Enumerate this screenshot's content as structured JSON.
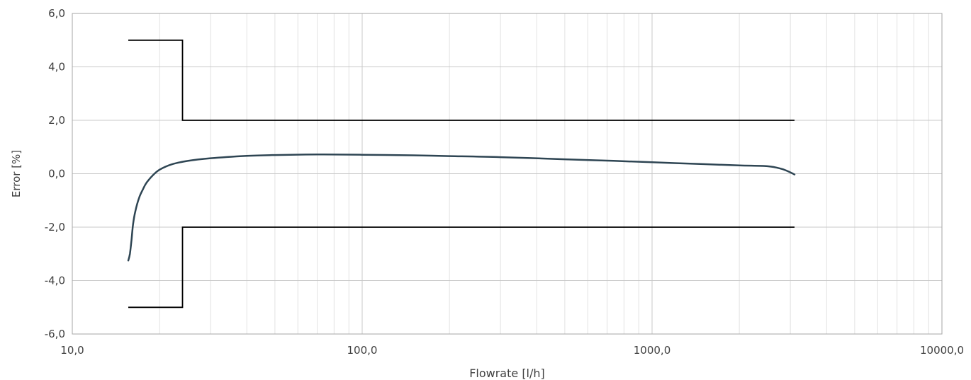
{
  "chart_data": {
    "type": "line",
    "title": "",
    "xlabel": "Flowrate [l/h]",
    "ylabel": "Error [%]",
    "x_scale": "log",
    "xlim": [
      10,
      10000
    ],
    "ylim": [
      -6,
      6
    ],
    "x_ticks": [
      {
        "value": 10,
        "label": "10,0"
      },
      {
        "value": 100,
        "label": "100,0"
      },
      {
        "value": 1000,
        "label": "1000,0"
      },
      {
        "value": 10000,
        "label": "10000,0"
      }
    ],
    "y_ticks": [
      {
        "value": 6,
        "label": "6,0"
      },
      {
        "value": 4,
        "label": "4,0"
      },
      {
        "value": 2,
        "label": "2,0"
      },
      {
        "value": 0,
        "label": "0,0"
      },
      {
        "value": -2,
        "label": "-2,0"
      },
      {
        "value": -4,
        "label": "-4,0"
      },
      {
        "value": -6,
        "label": "-6,0"
      }
    ],
    "grid": true,
    "legend": "none",
    "colors": {
      "error_curve": "#2e4553",
      "limits": "#000000",
      "grid_major": "#c8c8c8",
      "grid_minor": "#e2e2e2",
      "axis": "#a6a6a6"
    },
    "series": [
      {
        "id": "error_curve",
        "x": [
          15.6,
          15.8,
          16.0,
          16.2,
          16.5,
          17.0,
          17.5,
          18.0,
          19.0,
          20.0,
          22.0,
          25.0,
          30.0,
          40.0,
          50.0,
          70.0,
          100.0,
          150.0,
          200.0,
          300.0,
          500.0,
          700.0,
          1000.0,
          1500.0,
          2000.0,
          2500.0,
          2800.0,
          3000.0,
          3100.0
        ],
        "y": [
          -3.25,
          -3.0,
          -2.5,
          -1.9,
          -1.4,
          -0.9,
          -0.6,
          -0.35,
          -0.05,
          0.15,
          0.35,
          0.48,
          0.58,
          0.67,
          0.7,
          0.72,
          0.71,
          0.69,
          0.66,
          0.62,
          0.54,
          0.49,
          0.43,
          0.36,
          0.31,
          0.28,
          0.18,
          0.05,
          -0.03
        ]
      },
      {
        "id": "upper_limit",
        "x": [
          15.6,
          24.0,
          24.0,
          3100.0
        ],
        "y": [
          5.0,
          5.0,
          2.0,
          2.0
        ]
      },
      {
        "id": "lower_limit",
        "x": [
          15.6,
          24.0,
          24.0,
          3100.0
        ],
        "y": [
          -5.0,
          -5.0,
          -2.0,
          -2.0
        ]
      }
    ]
  }
}
